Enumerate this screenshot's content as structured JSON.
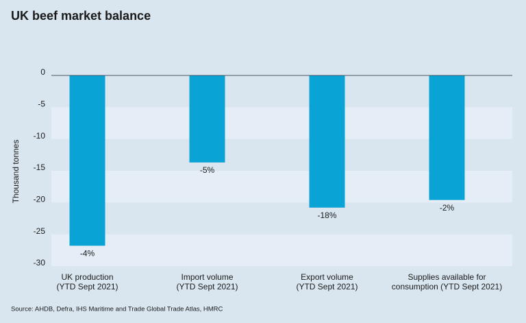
{
  "chart_data": {
    "type": "bar",
    "title": "UK beef market balance",
    "y_label": "Thousand tonnes",
    "categories": [
      [
        "UK production",
        "(YTD Sept 2021)"
      ],
      [
        "Import volume",
        "(YTD Sept 2021)"
      ],
      [
        "Export volume",
        "(YTD Sept 2021)"
      ],
      [
        "Supplies available for",
        "consumption (YTD Sept 2021)"
      ]
    ],
    "values": [
      -26.8,
      -13.7,
      -20.8,
      -19.6
    ],
    "bar_labels": [
      "-4%",
      "-5%",
      "-18%",
      "-2%"
    ],
    "color": "#0aa3d5",
    "ylim": [
      -30,
      0
    ],
    "yticks": [
      0,
      -5,
      -10,
      -15,
      -20,
      -25,
      -30
    ],
    "grid": "banded",
    "source": "Source: AHDB, Defra, IHS Maritime and Trade Global Trade Atlas, HMRC"
  }
}
